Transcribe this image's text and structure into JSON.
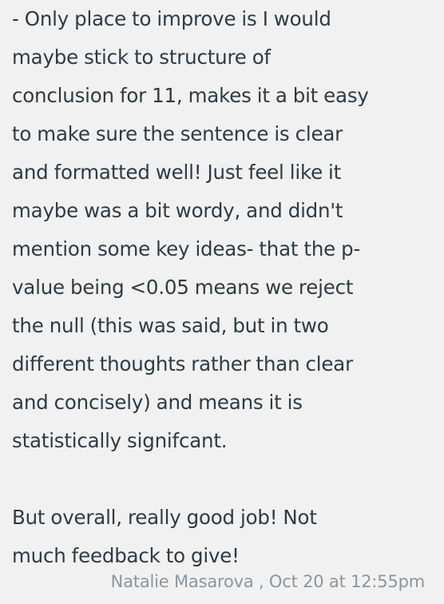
{
  "comment": {
    "lines": [
      "- Only place to improve is I would",
      "maybe stick to structure of",
      "conclusion for 11, makes it a bit easy",
      "to make sure the sentence is clear",
      "and formatted well! Just feel like it",
      "maybe was a bit wordy, and didn't",
      "mention some key ideas- that the p-",
      "value being <0.05 means we reject",
      "the null (this was said, but in two",
      "different thoughts rather than clear",
      "and concisely) and means it is",
      "statistically signifcant.",
      "",
      "But overall, really good job! Not",
      "much feedback to give!"
    ],
    "author": "Natalie Masarova",
    "timestamp": "Oct 20 at 12:55pm",
    "meta": "Natalie Masarova , Oct 20 at 12:55pm"
  }
}
